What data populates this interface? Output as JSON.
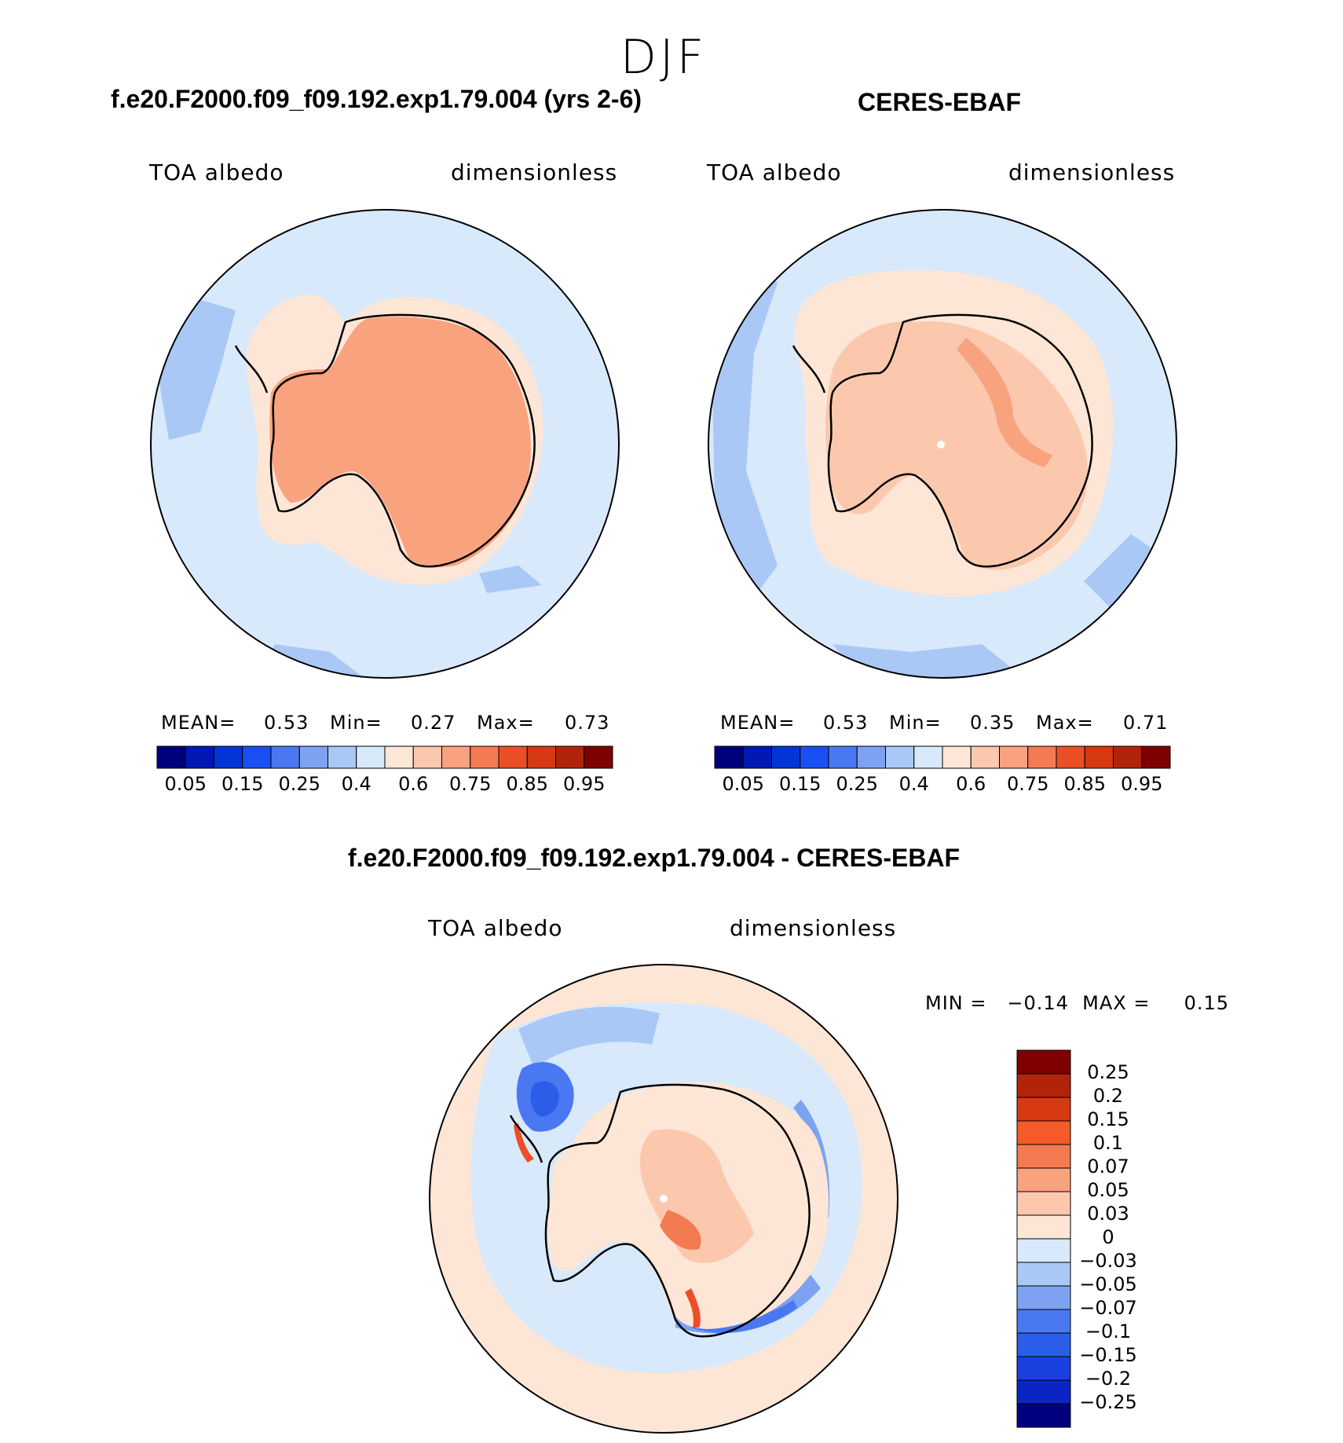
{
  "season": "DJF",
  "panels": [
    {
      "title": "f.e20.F2000.f09_f09.192.exp1.79.004 (yrs 2-6)",
      "variable": "TOA albedo",
      "units": "dimensionless",
      "stats": {
        "mean_label": "MEAN=",
        "mean": "0.53",
        "min_label": "Min=",
        "min": "0.27",
        "max_label": "Max=",
        "max": "0.73"
      }
    },
    {
      "title": "CERES-EBAF",
      "variable": "TOA albedo",
      "units": "dimensionless",
      "stats": {
        "mean_label": "MEAN=",
        "mean": "0.53",
        "min_label": "Min=",
        "min": "0.35",
        "max_label": "Max=",
        "max": "0.71"
      }
    }
  ],
  "colorbar": {
    "colors": [
      "#00007f",
      "#0019b4",
      "#0035d6",
      "#1a4ff1",
      "#4a78f2",
      "#7ea2f2",
      "#aac8f6",
      "#d8e9fb",
      "#fde6d6",
      "#fbc8ae",
      "#f9a27e",
      "#f47a52",
      "#ec4f26",
      "#d73912",
      "#b2240a",
      "#7f0000"
    ],
    "ticks": [
      "0.05",
      "0.15",
      "0.25",
      "0.4",
      "0.6",
      "0.75",
      "0.85",
      "0.95"
    ]
  },
  "diff": {
    "title": "f.e20.F2000.f09_f09.192.exp1.79.004 - CERES-EBAF",
    "variable": "TOA albedo",
    "units": "dimensionless",
    "minmax": "MIN =   −0.14  MAX =     0.15",
    "colors": [
      "#7f0000",
      "#b2240a",
      "#d73912",
      "#f55a28",
      "#f47a52",
      "#f9a27e",
      "#fbc8ae",
      "#fde6d6",
      "#d8e9fb",
      "#aac8f6",
      "#7ea2f2",
      "#4a78f2",
      "#2a5ee8",
      "#1a40e0",
      "#0a25c4",
      "#00007f"
    ],
    "ticks": [
      "0.25",
      "0.2",
      "0.15",
      "0.1",
      "0.07",
      "0.05",
      "0.03",
      "0",
      "−0.03",
      "−0.05",
      "−0.07",
      "−0.1",
      "−0.15",
      "−0.2",
      "−0.25"
    ]
  }
}
